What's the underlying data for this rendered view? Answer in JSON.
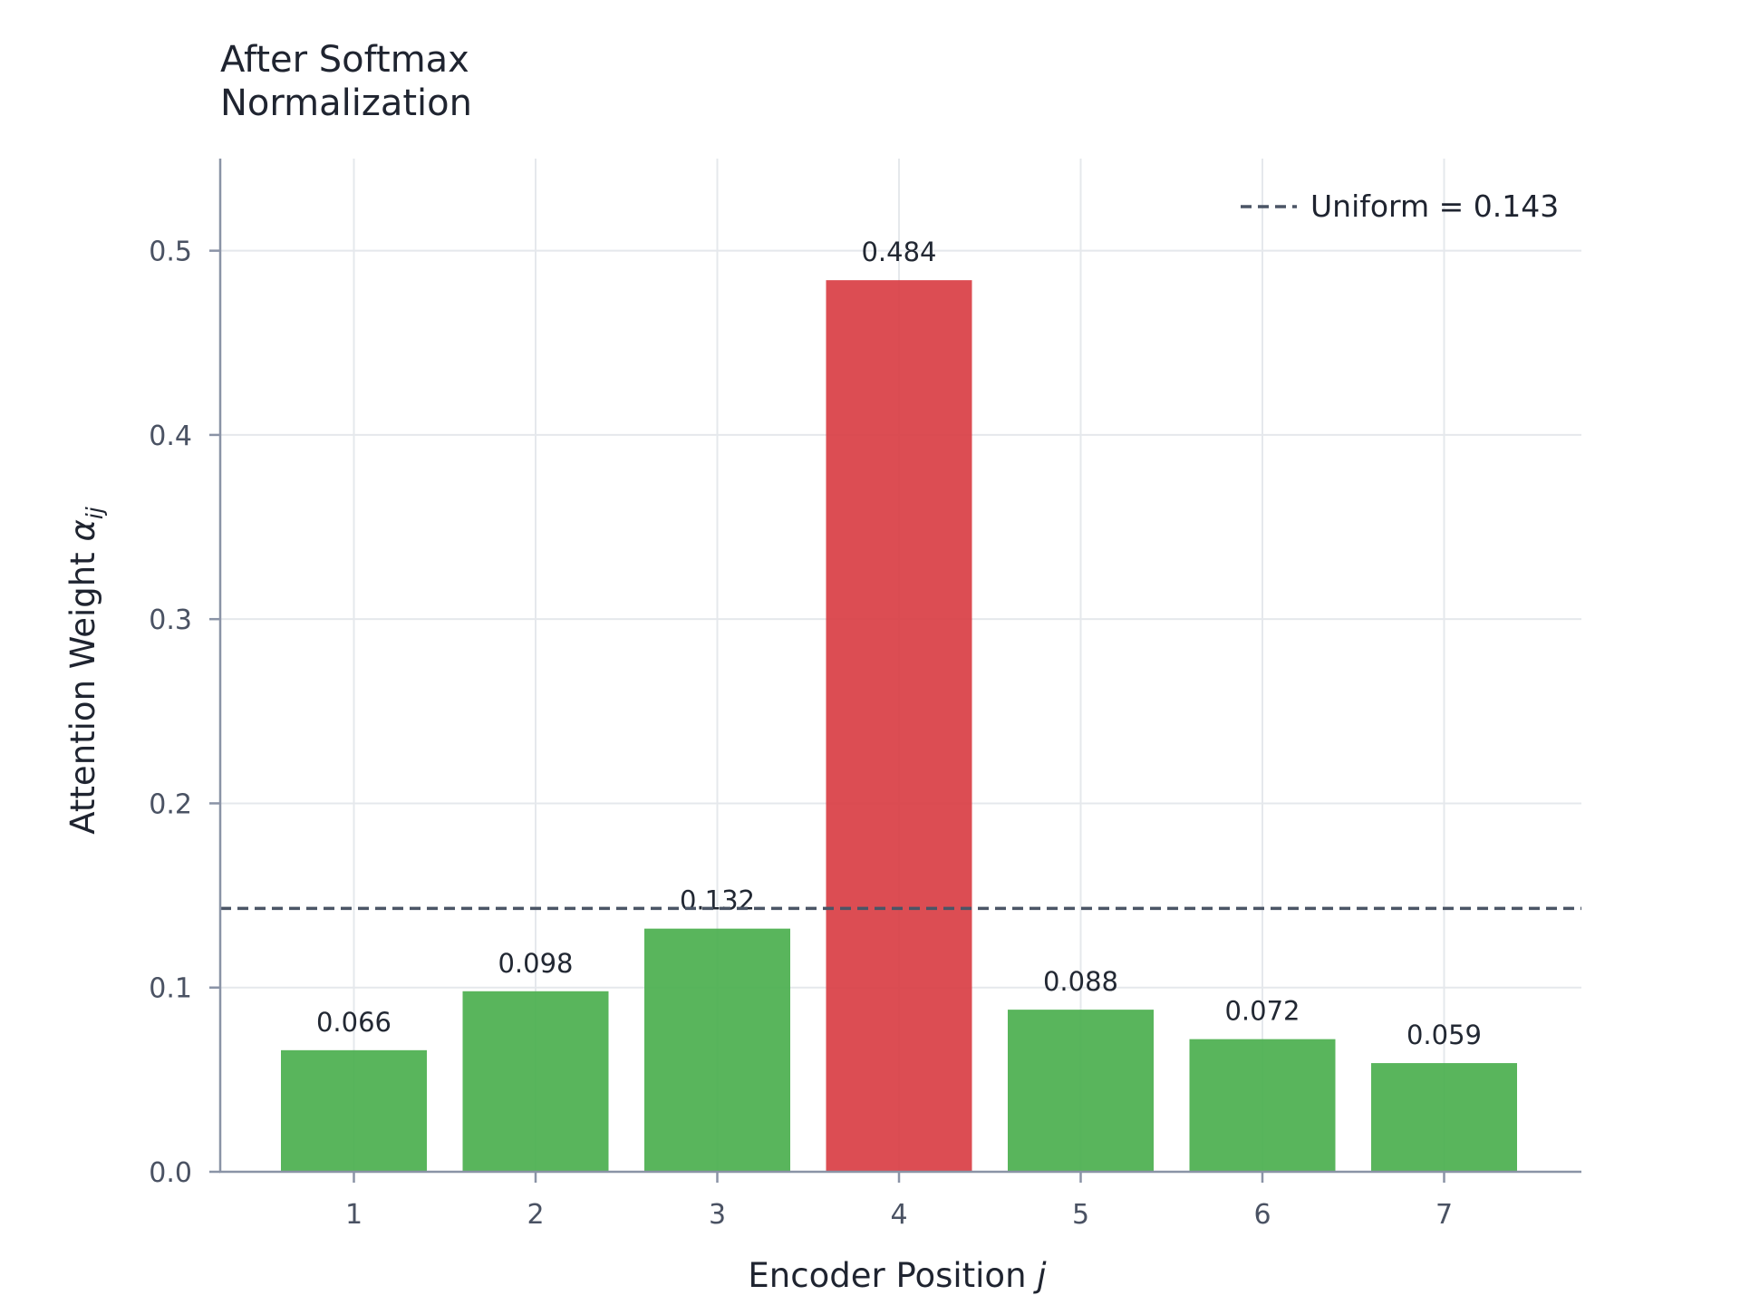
{
  "chart_data": {
    "type": "bar",
    "title_lines": [
      "After Softmax",
      "Normalization"
    ],
    "xlabel": "Encoder Position",
    "xlabel_var": "j",
    "ylabel": "Attention Weight",
    "ylabel_var": "α",
    "ylabel_sub": "ij",
    "categories": [
      "1",
      "2",
      "3",
      "4",
      "5",
      "6",
      "7"
    ],
    "values": [
      0.066,
      0.098,
      0.132,
      0.484,
      0.088,
      0.072,
      0.059
    ],
    "value_labels": [
      "0.066",
      "0.098",
      "0.132",
      "0.484",
      "0.088",
      "0.072",
      "0.059"
    ],
    "highlight_index": 3,
    "ylim": [
      0,
      0.55
    ],
    "yticks": [
      0.0,
      0.1,
      0.2,
      0.3,
      0.4,
      0.5
    ],
    "ytick_labels": [
      "0.0",
      "0.1",
      "0.2",
      "0.3",
      "0.4",
      "0.5"
    ],
    "reference_line": {
      "value": 0.143,
      "label": "Uniform = 0.143",
      "style": "dashed"
    },
    "legend_position": "top-right",
    "grid": true,
    "colors": {
      "bar": "#4caf50",
      "highlight": "#d94046",
      "reference": "#4b5566",
      "grid": "#e5e8ec",
      "axis": "#8a93a6"
    }
  }
}
